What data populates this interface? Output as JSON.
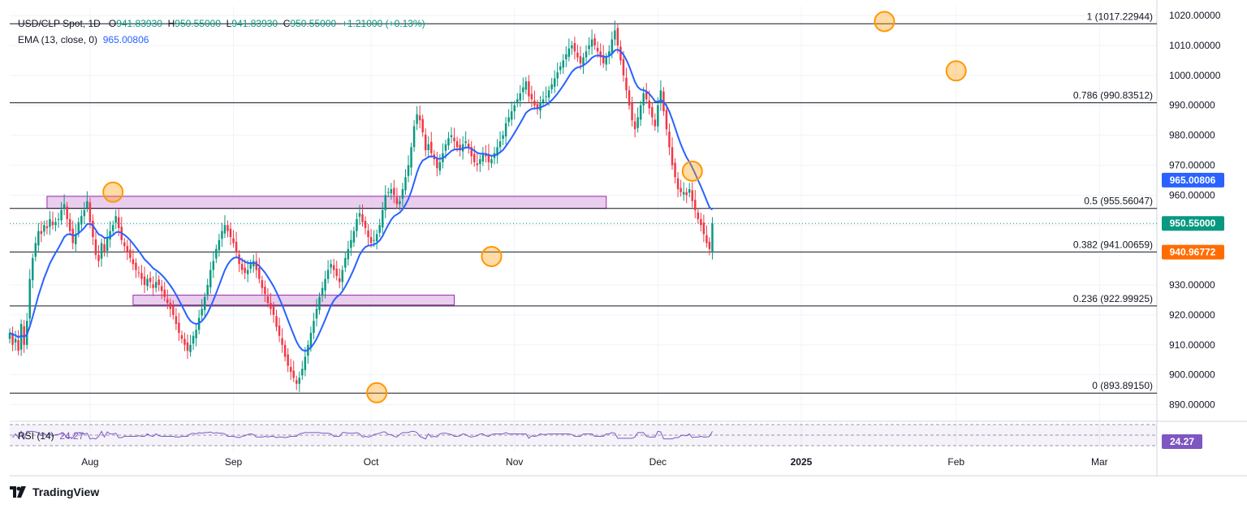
{
  "header": {
    "symbol": "USD/CLP Spot, 1D",
    "o_key": "O",
    "o_val": "941.83930",
    "h_key": "H",
    "h_val": "950.55000",
    "l_key": "L",
    "l_val": "941.83930",
    "c_key": "C",
    "c_val": "950.55000",
    "change": "+1.21000 (+0.13%)",
    "ema_label": "EMA (13, close, 0)",
    "ema_val": "965.00806"
  },
  "rsi": {
    "label": "RSI (14)",
    "value": "24.27",
    "badge": "24.27"
  },
  "branding": {
    "name": "TradingView"
  },
  "colors": {
    "up": "#089981",
    "down": "#f23645",
    "ema": "#2962ff",
    "zone": "#e1bee7",
    "zone_stroke": "#9c27b0",
    "highlight": "#ff9800",
    "rsi": "#7e57c2"
  },
  "chart_data": {
    "type": "candlestick",
    "ylim": [
      885,
      1023
    ],
    "y_ticks": [
      "1020.00000",
      "1010.00000",
      "1000.00000",
      "990.00000",
      "980.00000",
      "970.00000",
      "960.00000",
      "950.00000",
      "930.00000",
      "920.00000",
      "910.00000",
      "900.00000",
      "890.00000"
    ],
    "y_tick_values": [
      1020,
      1010,
      1000,
      990,
      980,
      970,
      960,
      950,
      930,
      920,
      910,
      900,
      890
    ],
    "x_ticks": [
      {
        "label": "Aug",
        "index": 28
      },
      {
        "label": "Sep",
        "index": 78
      },
      {
        "label": "Oct",
        "index": 126
      },
      {
        "label": "Nov",
        "index": 176
      },
      {
        "label": "Dec",
        "index": 226
      },
      {
        "label": "2025",
        "index": 276
      },
      {
        "label": "Feb",
        "index": 330
      },
      {
        "label": "Mar",
        "index": 380
      }
    ],
    "fib_levels": [
      {
        "label": "1 (1017.22944)",
        "value": 1017.22944
      },
      {
        "label": "0.786 (990.83512)",
        "value": 990.83512
      },
      {
        "label": "0.5 (955.56047)",
        "value": 955.56047
      },
      {
        "label": "0.382 (941.00659)",
        "value": 941.00659
      },
      {
        "label": "0.236 (922.99925)",
        "value": 922.99925
      },
      {
        "label": "0 (893.89150)",
        "value": 893.8915
      }
    ],
    "zones": [
      {
        "start": 13,
        "end": 208,
        "low": 955.6,
        "high": 959.6
      },
      {
        "start": 43,
        "end": 155,
        "low": 923.3,
        "high": 926.6
      }
    ],
    "price_badges": [
      {
        "label": "965.00806",
        "value": 965.00806,
        "color": "#2962ff"
      },
      {
        "label": "950.55000",
        "value": 950.55,
        "color": "#089981"
      },
      {
        "label": "940.96772",
        "value": 940.96772,
        "color": "#ff6d00"
      }
    ],
    "last_close": 950.55,
    "highlights": [
      {
        "index": 36,
        "value": 961
      },
      {
        "index": 128,
        "value": 894
      },
      {
        "index": 168,
        "value": 939.5
      },
      {
        "index": 238,
        "value": 968
      },
      {
        "index": 305,
        "value": 1018
      },
      {
        "index": 330,
        "value": 1001.5
      }
    ],
    "closes": [
      914,
      910,
      912,
      908,
      917,
      910,
      918,
      932,
      939,
      944,
      948,
      947,
      950,
      949,
      952,
      950,
      951,
      952,
      955,
      957,
      952,
      948,
      944,
      947,
      951,
      953,
      955,
      958,
      951,
      946,
      940,
      938,
      944,
      941,
      946,
      948,
      950,
      953,
      949,
      945,
      943,
      941,
      939,
      937,
      935,
      934,
      932,
      930,
      932,
      931,
      929,
      931,
      930,
      928,
      926,
      924,
      922,
      920,
      917,
      914,
      912,
      910,
      908,
      910,
      913,
      915,
      919,
      922,
      926,
      930,
      935,
      938,
      942,
      945,
      948,
      950,
      948,
      946,
      944,
      941,
      937,
      935,
      934,
      935,
      937,
      938,
      935,
      932,
      929,
      927,
      924,
      922,
      920,
      916,
      913,
      910,
      906,
      903,
      901,
      899,
      897,
      899,
      902,
      906,
      910,
      914,
      918,
      922,
      926,
      929,
      932,
      935,
      937,
      935,
      933,
      931,
      935,
      939,
      942,
      945,
      948,
      952,
      954,
      951,
      949,
      946,
      944,
      945,
      947,
      950,
      955,
      960,
      961,
      962,
      960,
      957,
      958,
      962,
      966,
      970,
      976,
      983,
      987,
      985,
      981,
      975,
      977,
      974,
      972,
      969,
      971,
      974,
      977,
      979,
      980,
      978,
      976,
      975,
      977,
      978,
      976,
      973,
      971,
      970,
      972,
      974,
      973,
      971,
      972,
      974,
      976,
      978,
      980,
      984,
      986,
      988,
      990,
      992,
      994,
      996,
      998,
      993,
      992,
      990,
      989,
      991,
      992,
      993,
      995,
      997,
      999,
      1001,
      1003,
      1005,
      1007,
      1009,
      1010,
      1008,
      1006,
      1004,
      1006,
      1008,
      1010,
      1012,
      1010,
      1008,
      1006,
      1004,
      1006,
      1008,
      1012,
      1015,
      1010,
      1005,
      1000,
      995,
      990,
      985,
      982,
      986,
      990,
      994,
      992,
      989,
      986,
      983,
      990,
      995,
      988,
      982,
      976,
      970,
      966,
      962,
      961,
      961,
      960,
      962,
      958,
      955,
      952,
      950,
      947,
      944,
      942,
      950.55
    ]
  }
}
